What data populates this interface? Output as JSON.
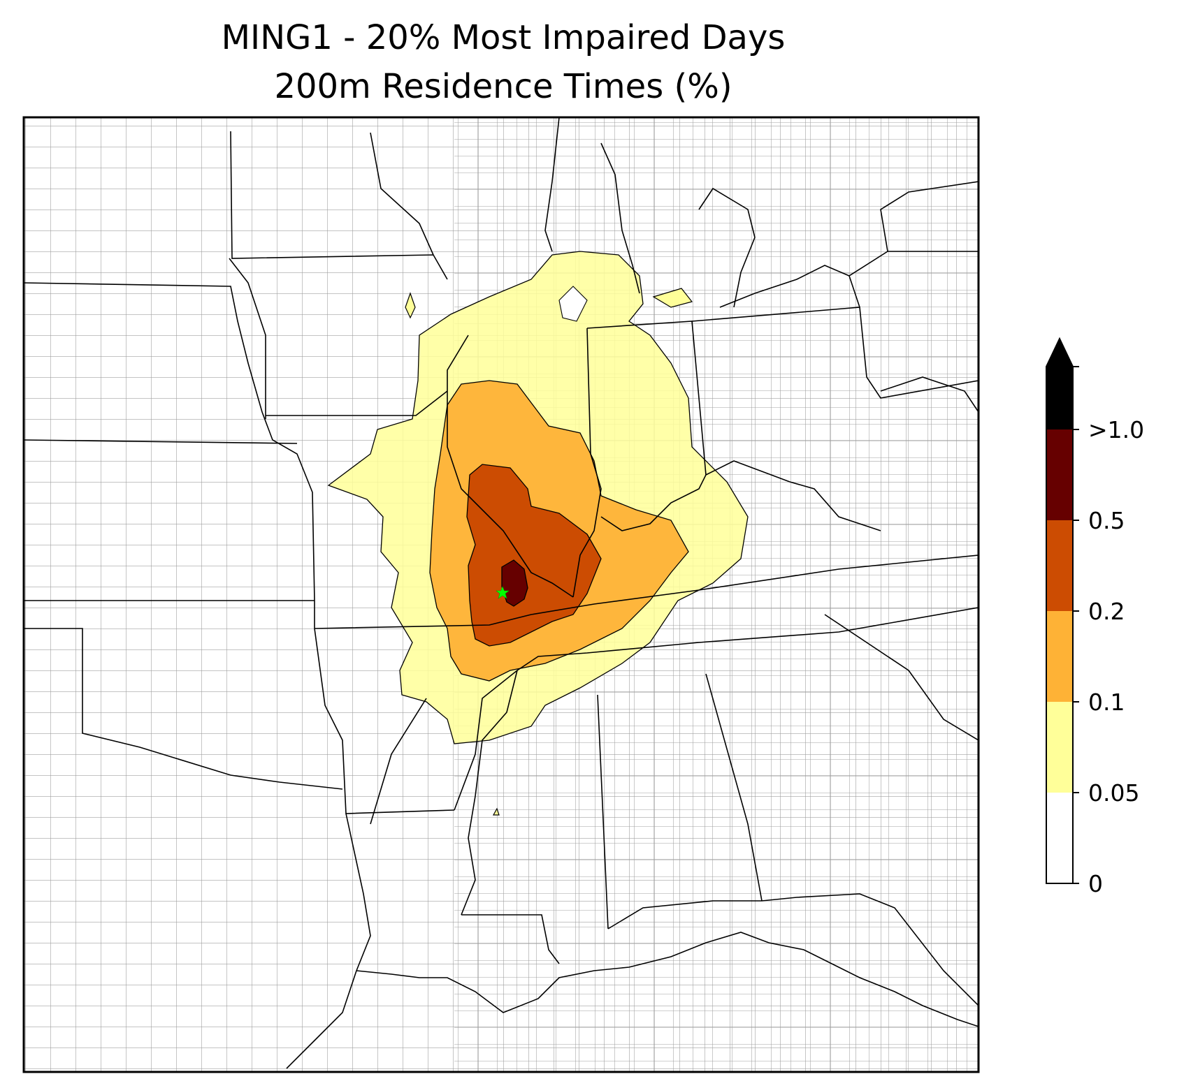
{
  "title": {
    "line1": "MING1 - 20% Most Impaired Days",
    "line2": "200m Residence Times (%)"
  },
  "colorbar": {
    "levels": [
      {
        "label": "0",
        "color": "#ffffff"
      },
      {
        "label": "0.05",
        "color": "#ffff99"
      },
      {
        "label": "0.1",
        "color": "#feb236"
      },
      {
        "label": "0.2",
        "color": "#cc4c02"
      },
      {
        "label": "0.5",
        "color": "#660000"
      },
      {
        "label": ">1.0",
        "color": "#000000"
      }
    ],
    "extend": "max"
  },
  "colors": {
    "state_border": "#000000",
    "county_border": "#a0a0a0",
    "receptor_marker": "#00ff00"
  },
  "receptor": {
    "icon": "star-icon"
  }
}
